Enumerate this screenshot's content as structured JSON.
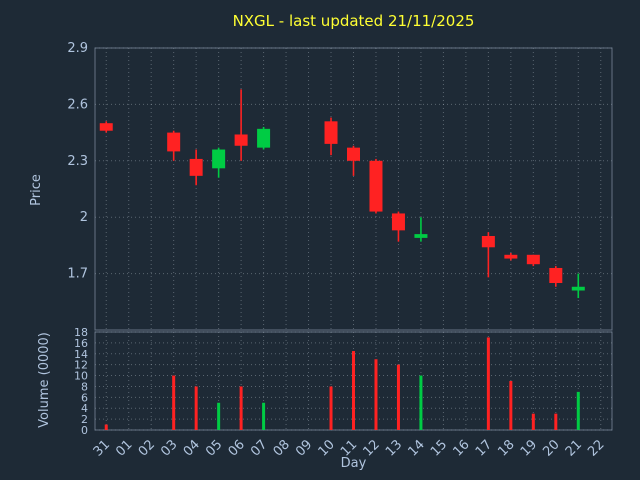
{
  "title": "NXGL - last updated 21/11/2025",
  "colors": {
    "background": "#1e2a36",
    "title": "#ffff33",
    "axis_label": "#b0c4de",
    "tick_label": "#b0c4de",
    "grid": "#c8d2dc",
    "spine": "#8493a5",
    "up": "#00cc44",
    "down": "#ff2222"
  },
  "chart_data": {
    "type": "candlestick+volume",
    "title": "NXGL - last updated 21/11/2025",
    "xlabel": "Day",
    "ylabel_price": "Price",
    "ylabel_volume": "Volume (0000)",
    "legend": "none",
    "grid": "dotted",
    "categories": [
      "31",
      "01",
      "02",
      "03",
      "04",
      "05",
      "06",
      "07",
      "08",
      "09",
      "10",
      "11",
      "12",
      "13",
      "14",
      "15",
      "16",
      "17",
      "18",
      "19",
      "20",
      "21",
      "22"
    ],
    "price_axis": {
      "min": 1.4,
      "max": 2.9,
      "tick_values": [
        2.9,
        2.6,
        2.3,
        2.0,
        1.7
      ],
      "tick_labels": [
        "2.9",
        "2.6",
        "2.3",
        "2",
        "1.7"
      ]
    },
    "volume_axis": {
      "min": 0,
      "max": 18,
      "tick_values": [
        18,
        16,
        14,
        12,
        10,
        8,
        6,
        4,
        2,
        0
      ],
      "tick_labels": [
        "18",
        "16",
        "14",
        "12",
        "10",
        "8",
        "6",
        "4",
        "2",
        "0"
      ]
    },
    "candles": [
      {
        "day": "31",
        "open": 2.5,
        "high": 2.51,
        "low": 2.45,
        "close": 2.46
      },
      {
        "day": "03",
        "open": 2.45,
        "high": 2.46,
        "low": 2.3,
        "close": 2.35
      },
      {
        "day": "04",
        "open": 2.31,
        "high": 2.36,
        "low": 2.17,
        "close": 2.22
      },
      {
        "day": "05",
        "open": 2.26,
        "high": 2.37,
        "low": 2.21,
        "close": 2.36
      },
      {
        "day": "06",
        "open": 2.44,
        "high": 2.68,
        "low": 2.3,
        "close": 2.38
      },
      {
        "day": "07",
        "open": 2.37,
        "high": 2.48,
        "low": 2.36,
        "close": 2.47
      },
      {
        "day": "10",
        "open": 2.51,
        "high": 2.53,
        "low": 2.33,
        "close": 2.39
      },
      {
        "day": "11",
        "open": 2.37,
        "high": 2.38,
        "low": 2.22,
        "close": 2.3
      },
      {
        "day": "12",
        "open": 2.3,
        "high": 2.31,
        "low": 2.02,
        "close": 2.03
      },
      {
        "day": "13",
        "open": 2.02,
        "high": 2.03,
        "low": 1.87,
        "close": 1.93
      },
      {
        "day": "14",
        "open": 1.89,
        "high": 2.0,
        "low": 1.87,
        "close": 1.91
      },
      {
        "day": "17",
        "open": 1.9,
        "high": 1.92,
        "low": 1.68,
        "close": 1.84
      },
      {
        "day": "18",
        "open": 1.8,
        "high": 1.81,
        "low": 1.77,
        "close": 1.78
      },
      {
        "day": "19",
        "open": 1.8,
        "high": 1.8,
        "low": 1.74,
        "close": 1.75
      },
      {
        "day": "20",
        "open": 1.73,
        "high": 1.74,
        "low": 1.63,
        "close": 1.65
      },
      {
        "day": "21",
        "open": 1.61,
        "high": 1.7,
        "low": 1.57,
        "close": 1.63
      }
    ],
    "volumes": [
      {
        "day": "31",
        "value": 1
      },
      {
        "day": "03",
        "value": 10
      },
      {
        "day": "04",
        "value": 8
      },
      {
        "day": "05",
        "value": 5
      },
      {
        "day": "06",
        "value": 8
      },
      {
        "day": "07",
        "value": 5
      },
      {
        "day": "10",
        "value": 8
      },
      {
        "day": "11",
        "value": 14.5
      },
      {
        "day": "12",
        "value": 13
      },
      {
        "day": "13",
        "value": 12
      },
      {
        "day": "14",
        "value": 10
      },
      {
        "day": "17",
        "value": 17
      },
      {
        "day": "18",
        "value": 9
      },
      {
        "day": "19",
        "value": 3
      },
      {
        "day": "20",
        "value": 3
      },
      {
        "day": "21",
        "value": 7
      }
    ]
  }
}
